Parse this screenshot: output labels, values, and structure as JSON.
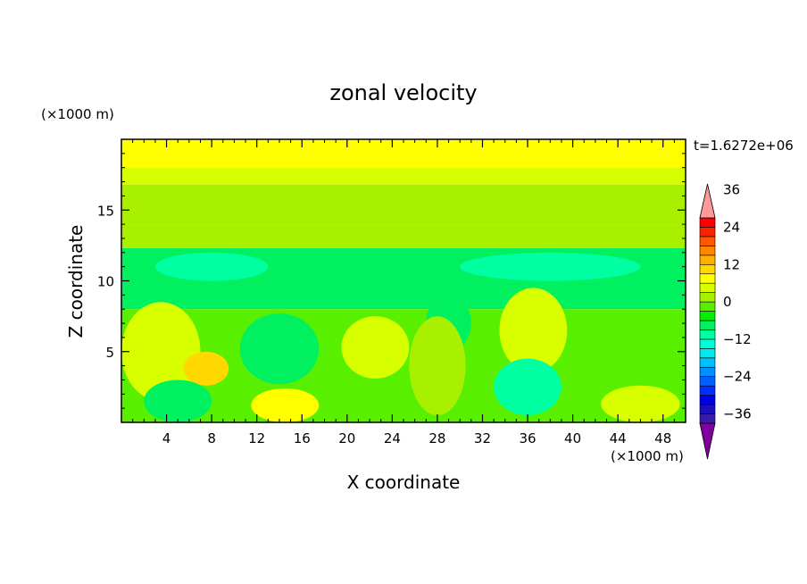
{
  "chart_data": {
    "type": "heatmap",
    "title": "zonal velocity",
    "xlabel": "X coordinate",
    "ylabel": "Z coordinate",
    "x_unit": "(×1000 m)",
    "y_unit": "(×1000 m)",
    "time_label": "t=1.6272e+06",
    "xlim": [
      0,
      50
    ],
    "ylim": [
      0,
      20
    ],
    "x_ticks": [
      4,
      8,
      12,
      16,
      20,
      24,
      28,
      32,
      36,
      40,
      44,
      48
    ],
    "y_ticks": [
      5,
      10,
      15
    ],
    "colorbar": {
      "min": -42,
      "max": 42,
      "step": 3,
      "tick_values": [
        36,
        24,
        12,
        0,
        -12,
        -24,
        -36
      ],
      "tick_labels": [
        "36",
        "24",
        "12",
        "0",
        "−12",
        "−24",
        "−36"
      ],
      "colors_low_to_high": [
        "#8000a0",
        "#3a1aa8",
        "#1a10c0",
        "#0000e8",
        "#0030ff",
        "#0060ff",
        "#0090ff",
        "#00c0ff",
        "#00e8f0",
        "#00ffd8",
        "#00ffa0",
        "#00f060",
        "#00f000",
        "#58f000",
        "#a8f000",
        "#d8ff00",
        "#ffff00",
        "#ffd800",
        "#ffb000",
        "#ff8800",
        "#ff5800",
        "#ff2000",
        "#ff0000",
        "#ff9a9a"
      ],
      "under_color": "#8000a0",
      "over_color": "#ff9a9a"
    },
    "bands_z_ranges": [
      {
        "z": [
          18.0,
          20.0
        ],
        "value": 8
      },
      {
        "z": [
          16.8,
          18.0
        ],
        "value": 4
      },
      {
        "z": [
          14.0,
          16.8
        ],
        "value": 2
      },
      {
        "z": [
          12.3,
          14.0
        ],
        "value": 1
      },
      {
        "z": [
          8.0,
          12.3
        ],
        "value": -7
      },
      {
        "z": [
          0.0,
          8.0
        ],
        "value": -3
      }
    ],
    "features": [
      {
        "name": "warm-lower-left",
        "x": 3.5,
        "z": 5.0,
        "rx": 3.5,
        "rz": 3.5,
        "value": 5
      },
      {
        "name": "warm-ridge-8",
        "x": 7.5,
        "z": 3.8,
        "rx": 2.0,
        "rz": 1.2,
        "value": 10
      },
      {
        "name": "warm-ridge-14",
        "x": 14.5,
        "z": 1.2,
        "rx": 3.0,
        "rz": 1.2,
        "value": 8
      },
      {
        "name": "warm-blob-23",
        "x": 22.5,
        "z": 5.3,
        "rx": 3.0,
        "rz": 2.2,
        "value": 4
      },
      {
        "name": "warm-blob-36",
        "x": 36.5,
        "z": 6.5,
        "rx": 3.0,
        "rz": 3.0,
        "value": 5
      },
      {
        "name": "warm-blob-45",
        "x": 46.0,
        "z": 1.3,
        "rx": 3.5,
        "rz": 1.3,
        "value": 5
      },
      {
        "name": "cool-14",
        "x": 14.0,
        "z": 5.2,
        "rx": 3.5,
        "rz": 2.5,
        "value": -9
      },
      {
        "name": "cool-29",
        "x": 29.0,
        "z": 7.0,
        "rx": 2.0,
        "rz": 2.0,
        "value": -9
      },
      {
        "name": "cool-36",
        "x": 36.0,
        "z": 2.5,
        "rx": 3.0,
        "rz": 2.0,
        "value": -10
      },
      {
        "name": "cool-5",
        "x": 5.0,
        "z": 1.5,
        "rx": 3.0,
        "rz": 1.5,
        "value": -7
      },
      {
        "name": "cool-upper-8",
        "x": 8.0,
        "z": 11.0,
        "rx": 5.0,
        "rz": 1.0,
        "value": -10
      },
      {
        "name": "cool-upper-38",
        "x": 38.0,
        "z": 11.0,
        "rx": 8.0,
        "rz": 1.0,
        "value": -10
      },
      {
        "name": "green-diag-27",
        "x": 28.0,
        "z": 4.0,
        "rx": 2.5,
        "rz": 3.5,
        "value": 0
      }
    ]
  }
}
